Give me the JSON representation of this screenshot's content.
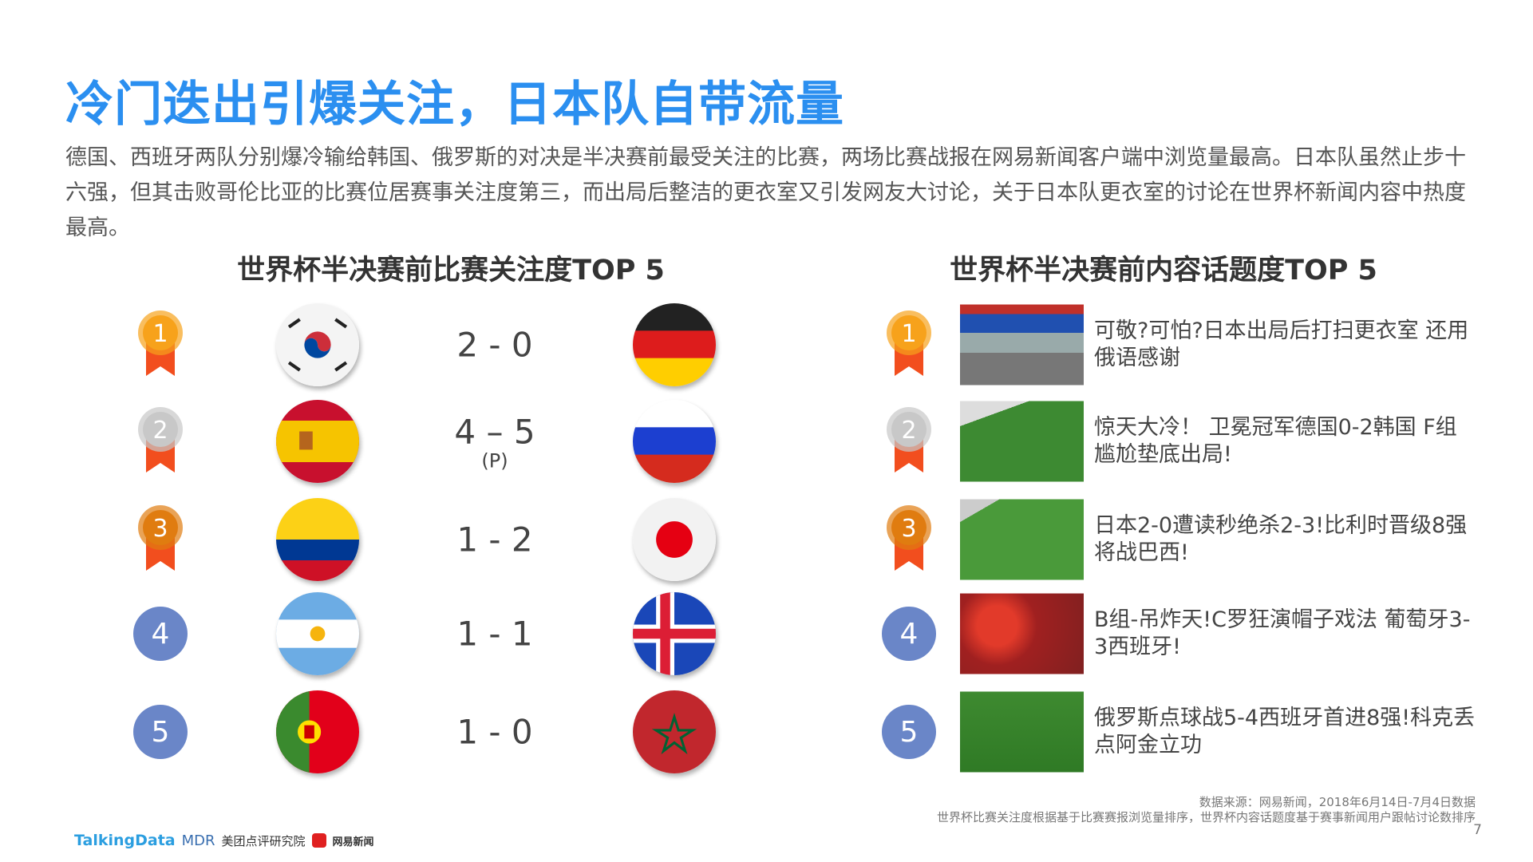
{
  "title": "冷门迭出引爆关注，日本队自带流量",
  "paragraph": "德国、西班牙两队分别爆冷输给韩国、俄罗斯的对决是半决赛前最受关注的比赛，两场比赛战报在网易新闻客户端中浏览量最高。日本队虽然止步十六强，但其击败哥伦比亚的比赛位居赛事关注度第三，而出局后整洁的更衣室又引发网友大讨论，关于日本队更衣室的讨论在世界杯新闻内容中热度最高。",
  "left_heading": "世界杯半决赛前比赛关注度TOP 5",
  "right_heading": "世界杯半决赛前内容话题度TOP 5",
  "matches": [
    {
      "rank": "1",
      "team1": "korea",
      "team2": "germany",
      "score": "2 - 0",
      "note": ""
    },
    {
      "rank": "2",
      "team1": "spain",
      "team2": "russia",
      "score": "4 – 5",
      "note": "(P)"
    },
    {
      "rank": "3",
      "team1": "colombia",
      "team2": "japan",
      "score": "1 - 2",
      "note": ""
    },
    {
      "rank": "4",
      "team1": "argentina",
      "team2": "iceland",
      "score": "1 - 1",
      "note": ""
    },
    {
      "rank": "5",
      "team1": "portugal",
      "team2": "morocco",
      "score": "1 - 0",
      "note": ""
    }
  ],
  "topics": [
    {
      "rank": "1",
      "text": "可敬?可怕?日本出局后打扫更衣室 还用俄语感谢"
    },
    {
      "rank": "2",
      "text": "惊天大冷！ 卫冕冠军德国0-2韩国 F组尴尬垫底出局!"
    },
    {
      "rank": "3",
      "text": "日本2-0遭读秒绝杀2-3!比利时晋级8强将战巴西!"
    },
    {
      "rank": "4",
      "text": "B组-吊炸天!C罗狂演帽子戏法 葡萄牙3-3西班牙!"
    },
    {
      "rank": "5",
      "text": "俄罗斯点球战5-4西班牙首进8强!科克丢点阿金立功"
    }
  ],
  "source_line1": "数据来源：网易新闻，2018年6月14日-7月4日数据",
  "source_line2": "世界杯比赛关注度根据基于比赛赛报浏览量排序，世界杯内容话题度基于赛事新闻用户跟帖讨论数排序",
  "page_number": "7",
  "logos": {
    "talkingdata": "TalkingData",
    "mdr": "MDR",
    "meituan": "美团点评研究院",
    "netease": "网易新闻"
  },
  "colors": {
    "title": "#2b8ff0",
    "gold": "#f7a21b",
    "silver": "#c8c8c8",
    "bronze": "#e07c10",
    "ribbon": "#f24e1e",
    "rank_blue": "#6a86c8"
  }
}
